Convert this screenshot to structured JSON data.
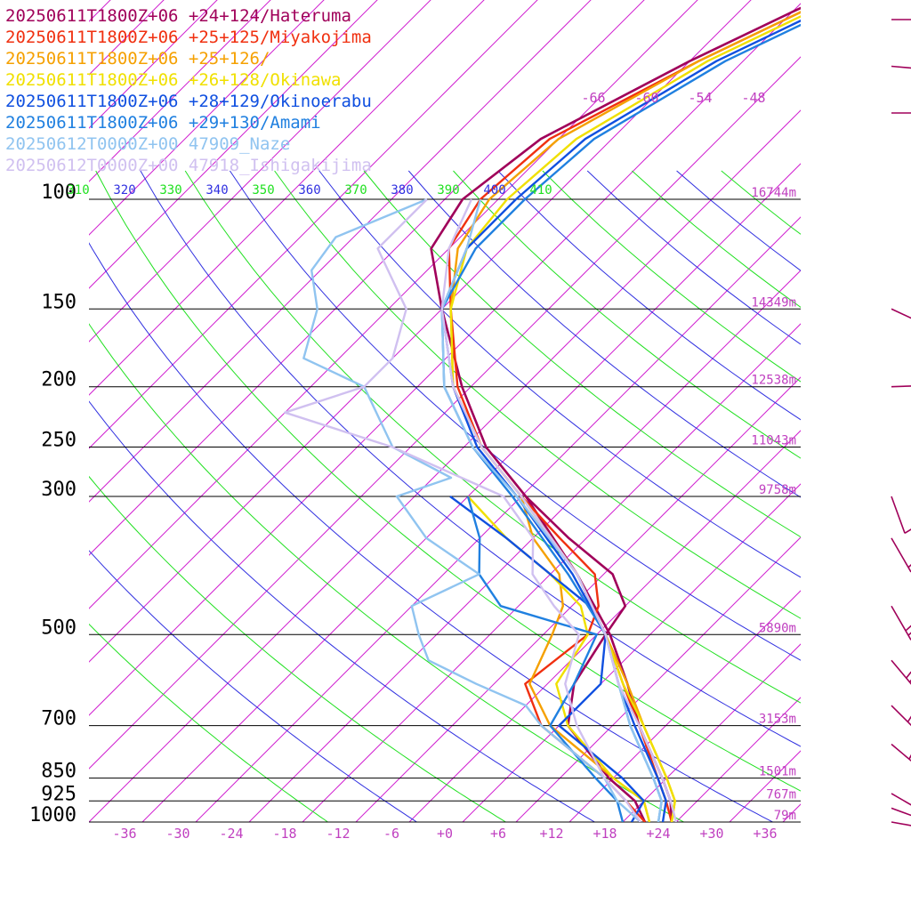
{
  "chart_data": {
    "type": "line",
    "chart_kind": "skew-T log-p sounding",
    "legend": [
      {
        "text": "20250611T1800Z+06 +24+124/Hateruma",
        "color": "#a0005a"
      },
      {
        "text": "20250611T1800Z+06 +25+125/Miyakojima",
        "color": "#f03010"
      },
      {
        "text": "20250611T1800Z+06 +25+126/",
        "color": "#f5a000"
      },
      {
        "text": "20250611T1800Z+06 +26+128/Okinawa",
        "color": "#f0e000"
      },
      {
        "text": "20250611T1800Z+06 +28+129/Okinoerabu",
        "color": "#1050e0"
      },
      {
        "text": "20250611T1800Z+06 +29+130/Amami",
        "color": "#2080e0"
      },
      {
        "text": "20250612T0000Z+00 47909_Naze",
        "color": "#90c4f0"
      },
      {
        "text": "20250612T0000Z+00 47918_Ishigakijima",
        "color": "#d0c0f0"
      }
    ],
    "pressure_levels": [
      {
        "p": 100,
        "label": "100",
        "height": "16744m"
      },
      {
        "p": 150,
        "label": "150",
        "height": "14349m"
      },
      {
        "p": 200,
        "label": "200",
        "height": "12538m"
      },
      {
        "p": 250,
        "label": "250",
        "height": "11043m"
      },
      {
        "p": 300,
        "label": "300",
        "height": "9758m"
      },
      {
        "p": 500,
        "label": "500",
        "height": "5890m"
      },
      {
        "p": 700,
        "label": "700",
        "height": "3153m"
      },
      {
        "p": 850,
        "label": "850",
        "height": "1501m"
      },
      {
        "p": 925,
        "label": "925",
        "height": "767m"
      },
      {
        "p": 1000,
        "label": "1000",
        "height": "79m"
      }
    ],
    "temperature_ticks": [
      "-36",
      "-30",
      "-24",
      "-18",
      "-12",
      "-6",
      "+0",
      "+6",
      "+12",
      "+18",
      "+24",
      "+30",
      "+36"
    ],
    "temperature_tick_values": [
      -36,
      -30,
      -24,
      -18,
      -12,
      -6,
      0,
      6,
      12,
      18,
      24,
      30,
      36
    ],
    "theta_labels": [
      "310",
      "320",
      "330",
      "340",
      "350",
      "360",
      "370",
      "380",
      "390",
      "400",
      "410"
    ],
    "upper_temperature_labels": [
      "-66",
      "-60",
      "-54",
      "-48"
    ],
    "upper_temperature_values": [
      -66,
      -60,
      -54,
      -48
    ],
    "x_range_deg_c_at_1000hpa": [
      -40,
      40
    ],
    "p_range_hpa": [
      1000,
      100
    ],
    "colors": {
      "isotherm": "#d020d0",
      "theta_a": "#3030e0",
      "theta_b": "#20e020",
      "isobar": "#000000",
      "label": "#c040c0",
      "barb": "#a0005a"
    },
    "series": [
      {
        "name": "20250611T1800Z+06 +24+124/Hateruma",
        "color": "#a0005a",
        "width": 2.6,
        "temperature": [
          [
            1000,
            25.5
          ],
          [
            925,
            23
          ],
          [
            850,
            19.5
          ],
          [
            700,
            11
          ],
          [
            600,
            5
          ],
          [
            500,
            -2.5
          ],
          [
            400,
            -13
          ],
          [
            300,
            -27.5
          ],
          [
            250,
            -37.5
          ],
          [
            200,
            -47
          ],
          [
            150,
            -58
          ],
          [
            120,
            -66
          ],
          [
            100,
            -68
          ],
          [
            80,
            -66
          ],
          [
            60,
            -58
          ],
          [
            50,
            -52
          ],
          [
            40,
            -44
          ],
          [
            35,
            -38
          ]
        ],
        "dewpoint": [
          [
            1000,
            22.5
          ],
          [
            925,
            19
          ],
          [
            850,
            13.5
          ],
          [
            700,
            3
          ],
          [
            600,
            -1
          ],
          [
            500,
            -3
          ],
          [
            450,
            -4
          ],
          [
            400,
            -9
          ],
          [
            350,
            -18
          ],
          [
            300,
            -27.5
          ]
        ]
      },
      {
        "name": "20250611T1800Z+06 +25+125/Miyakojima",
        "color": "#f03010",
        "width": 2.4,
        "temperature": [
          [
            1000,
            25.5
          ],
          [
            925,
            22.5
          ],
          [
            850,
            19
          ],
          [
            700,
            11
          ],
          [
            600,
            4.5
          ],
          [
            500,
            -3
          ],
          [
            400,
            -13
          ],
          [
            300,
            -28
          ],
          [
            250,
            -38
          ],
          [
            200,
            -47.5
          ],
          [
            150,
            -57
          ],
          [
            120,
            -64
          ],
          [
            100,
            -66
          ],
          [
            80,
            -65
          ],
          [
            60,
            -57
          ],
          [
            50,
            -51
          ],
          [
            40,
            -43
          ],
          [
            35,
            -37
          ]
        ],
        "dewpoint": [
          [
            1000,
            22.5
          ],
          [
            925,
            18
          ],
          [
            850,
            13
          ],
          [
            700,
            0
          ],
          [
            600,
            -6.5
          ],
          [
            500,
            -5
          ],
          [
            450,
            -7
          ],
          [
            400,
            -11
          ],
          [
            350,
            -19
          ],
          [
            300,
            -28
          ]
        ]
      },
      {
        "name": "20250611T1800Z+06 +25+126/",
        "color": "#f5a000",
        "width": 2.4,
        "temperature": [
          [
            1000,
            25.5
          ],
          [
            925,
            23.5
          ],
          [
            850,
            20
          ],
          [
            700,
            11.5
          ],
          [
            600,
            5
          ],
          [
            500,
            -3
          ],
          [
            400,
            -13
          ],
          [
            300,
            -28
          ],
          [
            250,
            -38
          ],
          [
            200,
            -48
          ],
          [
            150,
            -57
          ],
          [
            120,
            -63
          ],
          [
            100,
            -65
          ],
          [
            80,
            -64
          ],
          [
            60,
            -57
          ],
          [
            50,
            -51
          ],
          [
            40,
            -43
          ],
          [
            35,
            -37
          ]
        ],
        "dewpoint": [
          [
            1000,
            23
          ],
          [
            925,
            20
          ],
          [
            850,
            14
          ],
          [
            700,
            1
          ],
          [
            600,
            -6
          ],
          [
            500,
            -9
          ],
          [
            450,
            -11
          ],
          [
            400,
            -15
          ],
          [
            350,
            -22
          ],
          [
            300,
            -28
          ]
        ]
      },
      {
        "name": "20250611T1800Z+06 +26+128/Okinawa",
        "color": "#f0e000",
        "width": 2.4,
        "temperature": [
          [
            1000,
            25.5
          ],
          [
            925,
            23.5
          ],
          [
            850,
            20
          ],
          [
            700,
            11.5
          ],
          [
            600,
            4.5
          ],
          [
            500,
            -3
          ],
          [
            400,
            -13
          ],
          [
            300,
            -28
          ],
          [
            250,
            -38
          ],
          [
            200,
            -48
          ],
          [
            150,
            -57
          ],
          [
            120,
            -62
          ],
          [
            100,
            -63
          ],
          [
            80,
            -62
          ],
          [
            60,
            -56
          ],
          [
            50,
            -50
          ],
          [
            40,
            -42
          ],
          [
            35,
            -36
          ]
        ],
        "dewpoint": [
          [
            1000,
            23
          ],
          [
            925,
            20
          ],
          [
            850,
            14
          ],
          [
            700,
            3
          ],
          [
            600,
            -3
          ],
          [
            500,
            -5
          ],
          [
            450,
            -9
          ],
          [
            400,
            -16
          ],
          [
            350,
            -25
          ],
          [
            300,
            -34
          ]
        ]
      },
      {
        "name": "20250611T1800Z+06 +28+129/Okinoerabu",
        "color": "#1050e0",
        "width": 2.4,
        "temperature": [
          [
            1000,
            24.5
          ],
          [
            925,
            22.5
          ],
          [
            850,
            19
          ],
          [
            700,
            10.5
          ],
          [
            600,
            4
          ],
          [
            500,
            -3
          ],
          [
            400,
            -13.5
          ],
          [
            300,
            -28.5
          ],
          [
            250,
            -38.5
          ],
          [
            200,
            -48
          ],
          [
            150,
            -58
          ],
          [
            120,
            -62
          ],
          [
            100,
            -62
          ],
          [
            80,
            -61
          ],
          [
            60,
            -55
          ],
          [
            50,
            -49
          ],
          [
            40,
            -41
          ],
          [
            35,
            -35
          ]
        ],
        "dewpoint": [
          [
            1000,
            21
          ],
          [
            925,
            20
          ],
          [
            850,
            15
          ],
          [
            700,
            2
          ],
          [
            600,
            2
          ],
          [
            500,
            -3
          ],
          [
            450,
            -8
          ],
          [
            400,
            -16
          ],
          [
            350,
            -25
          ],
          [
            300,
            -36
          ]
        ]
      },
      {
        "name": "20250611T1800Z+06 +29+130/Amami",
        "color": "#2080e0",
        "width": 2.4,
        "temperature": [
          [
            1000,
            24
          ],
          [
            925,
            22
          ],
          [
            850,
            18.5
          ],
          [
            700,
            10
          ],
          [
            600,
            4
          ],
          [
            500,
            -3
          ],
          [
            400,
            -14
          ],
          [
            300,
            -29
          ],
          [
            250,
            -39
          ],
          [
            200,
            -49
          ],
          [
            150,
            -58
          ],
          [
            120,
            -61
          ],
          [
            100,
            -61
          ],
          [
            80,
            -60
          ],
          [
            60,
            -54
          ],
          [
            50,
            -48
          ],
          [
            40,
            -40
          ],
          [
            35,
            -34
          ]
        ],
        "dewpoint": [
          [
            1000,
            20
          ],
          [
            925,
            17
          ],
          [
            850,
            12
          ],
          [
            700,
            1
          ],
          [
            600,
            -1
          ],
          [
            500,
            -4
          ],
          [
            450,
            -18
          ],
          [
            400,
            -24
          ],
          [
            350,
            -28
          ],
          [
            300,
            -34
          ]
        ]
      },
      {
        "name": "20250612T0000Z+00 47909_Naze",
        "color": "#90c4f0",
        "width": 2.4,
        "temperature": [
          [
            1000,
            24
          ],
          [
            925,
            22
          ],
          [
            850,
            18.5
          ],
          [
            700,
            10
          ],
          [
            600,
            4
          ],
          [
            500,
            -3
          ],
          [
            400,
            -13
          ],
          [
            300,
            -28.5
          ],
          [
            250,
            -39
          ],
          [
            200,
            -49
          ],
          [
            150,
            -58
          ],
          [
            120,
            -62
          ],
          [
            100,
            -66
          ]
        ],
        "dewpoint": [
          [
            1000,
            22
          ],
          [
            925,
            17
          ],
          [
            850,
            13
          ],
          [
            700,
            0
          ],
          [
            650,
            -4
          ],
          [
            600,
            -12
          ],
          [
            550,
            -20
          ],
          [
            500,
            -24
          ],
          [
            450,
            -28
          ],
          [
            400,
            -24
          ],
          [
            350,
            -34
          ],
          [
            300,
            -42
          ],
          [
            280,
            -38
          ],
          [
            250,
            -48
          ],
          [
            200,
            -58
          ],
          [
            180,
            -68
          ],
          [
            150,
            -72
          ],
          [
            130,
            -77
          ],
          [
            115,
            -78
          ],
          [
            100,
            -72
          ]
        ]
      },
      {
        "name": "20250612T0000Z+00 47918_Ishigakijima",
        "color": "#d0c0f0",
        "width": 2.4,
        "temperature": [
          [
            1000,
            26
          ],
          [
            925,
            23
          ],
          [
            850,
            19.5
          ],
          [
            700,
            11
          ],
          [
            600,
            4
          ],
          [
            500,
            -3
          ],
          [
            400,
            -13
          ],
          [
            300,
            -28
          ],
          [
            250,
            -38
          ],
          [
            200,
            -48
          ],
          [
            150,
            -58
          ],
          [
            120,
            -64
          ],
          [
            100,
            -67
          ]
        ],
        "dewpoint": [
          [
            1000,
            22
          ],
          [
            925,
            18
          ],
          [
            850,
            13
          ],
          [
            700,
            4
          ],
          [
            600,
            -2
          ],
          [
            500,
            -6
          ],
          [
            450,
            -12
          ],
          [
            400,
            -18
          ],
          [
            350,
            -22
          ],
          [
            300,
            -30
          ],
          [
            250,
            -48
          ],
          [
            220,
            -64
          ],
          [
            200,
            -58
          ],
          [
            180,
            -58
          ],
          [
            150,
            -62
          ],
          [
            120,
            -72
          ],
          [
            100,
            -72
          ]
        ]
      }
    ],
    "wind_barbs": [
      {
        "p": 70,
        "dir": 270,
        "kt": 20
      },
      {
        "p": 85,
        "dir": 275,
        "kt": 25
      },
      {
        "p": 100,
        "dir": 270,
        "kt": 10
      },
      {
        "p": 150,
        "dir": 295,
        "kt": 15
      },
      {
        "p": 200,
        "dir": 268,
        "kt": 5
      },
      {
        "p": 300,
        "dir": 340,
        "kt": 5
      },
      {
        "p": 350,
        "dir": 330,
        "kt": 15
      },
      {
        "p": 450,
        "dir": 330,
        "kt": 25
      },
      {
        "p": 550,
        "dir": 320,
        "kt": 35
      },
      {
        "p": 650,
        "dir": 315,
        "kt": 35
      },
      {
        "p": 750,
        "dir": 310,
        "kt": 35
      },
      {
        "p": 900,
        "dir": 300,
        "kt": 35
      },
      {
        "p": 950,
        "dir": 290,
        "kt": 35
      },
      {
        "p": 1000,
        "dir": 280,
        "kt": 35
      }
    ]
  }
}
